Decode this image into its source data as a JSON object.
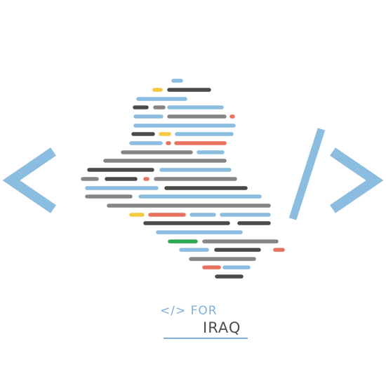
{
  "logo": {
    "wordmark_prefix": "</> FOR",
    "wordmark_main": "IRAQ",
    "palette": {
      "blue": "#8bbde0",
      "dark": "#4a4a4a",
      "gray": "#858585",
      "red": "#e8715f",
      "yellow": "#f7c93f",
      "green": "#2fa84f",
      "accent": "#7fb0d9"
    },
    "icon": "code-brackets-map-of-iraq"
  }
}
